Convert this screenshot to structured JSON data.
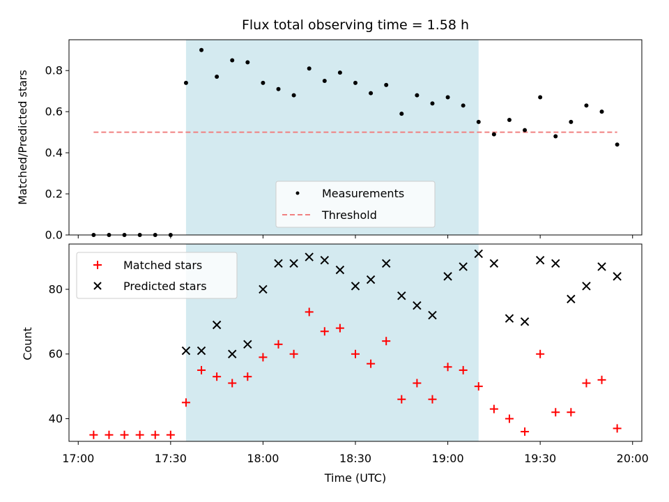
{
  "chart_data": [
    {
      "type": "scatter",
      "title": "Flux total observing time = 1.58 h",
      "ylabel": "Matched/Predicted stars",
      "ylim": [
        0,
        0.95
      ],
      "yticks": [
        "0.0",
        "0.2",
        "0.4",
        "0.6",
        "0.8"
      ],
      "shaded_interval": [
        "17:35",
        "19:10"
      ],
      "shade_color": "#d4eaf0",
      "legend_position": "lower-center",
      "series": [
        {
          "name": "Measurements",
          "marker": "dot",
          "color": "#000000",
          "x": [
            "17:05",
            "17:10",
            "17:15",
            "17:20",
            "17:25",
            "17:30",
            "17:35",
            "17:40",
            "17:45",
            "17:50",
            "17:55",
            "18:00",
            "18:05",
            "18:10",
            "18:15",
            "18:20",
            "18:25",
            "18:30",
            "18:35",
            "18:40",
            "18:45",
            "18:50",
            "18:55",
            "19:00",
            "19:05",
            "19:10",
            "19:15",
            "19:20",
            "19:25",
            "19:30",
            "19:35",
            "19:40",
            "19:45",
            "19:50",
            "19:55"
          ],
          "y": [
            0,
            0,
            0,
            0,
            0,
            0,
            0.74,
            0.9,
            0.77,
            0.85,
            0.84,
            0.74,
            0.71,
            0.68,
            0.81,
            0.75,
            0.79,
            0.74,
            0.69,
            0.73,
            0.59,
            0.68,
            0.64,
            0.67,
            0.63,
            0.55,
            0.49,
            0.56,
            0.51,
            0.67,
            0.48,
            0.55,
            0.63,
            0.6,
            0.44
          ]
        },
        {
          "name": "Threshold",
          "marker": "dashed-line",
          "color": "#f08080",
          "x": [
            "17:05",
            "19:55"
          ],
          "y": [
            0.5,
            0.5
          ]
        }
      ]
    },
    {
      "type": "scatter",
      "ylabel": "Count",
      "xlabel": "Time (UTC)",
      "ylim": [
        33,
        94
      ],
      "yticks": [
        "40",
        "60",
        "80"
      ],
      "xticks": [
        "17:00",
        "17:30",
        "18:00",
        "18:30",
        "19:00",
        "19:30",
        "20:00"
      ],
      "shaded_interval": [
        "17:35",
        "19:10"
      ],
      "shade_color": "#d4eaf0",
      "legend_position": "upper-left",
      "series": [
        {
          "name": "Matched stars",
          "marker": "plus",
          "color": "#ff0000",
          "x": [
            "17:05",
            "17:10",
            "17:15",
            "17:20",
            "17:25",
            "17:30",
            "17:35",
            "17:40",
            "17:45",
            "17:50",
            "17:55",
            "18:00",
            "18:05",
            "18:10",
            "18:15",
            "18:20",
            "18:25",
            "18:30",
            "18:35",
            "18:40",
            "18:45",
            "18:50",
            "18:55",
            "19:00",
            "19:05",
            "19:10",
            "19:15",
            "19:20",
            "19:25",
            "19:30",
            "19:35",
            "19:40",
            "19:45",
            "19:50",
            "19:55"
          ],
          "y": [
            35,
            35,
            35,
            35,
            35,
            35,
            45,
            55,
            53,
            51,
            53,
            59,
            63,
            60,
            73,
            67,
            68,
            60,
            57,
            64,
            46,
            51,
            46,
            56,
            55,
            50,
            43,
            40,
            36,
            60,
            42,
            42,
            51,
            52,
            37
          ]
        },
        {
          "name": "Predicted stars",
          "marker": "x",
          "color": "#000000",
          "x": [
            "17:35",
            "17:40",
            "17:45",
            "17:50",
            "17:55",
            "18:00",
            "18:05",
            "18:10",
            "18:15",
            "18:20",
            "18:25",
            "18:30",
            "18:35",
            "18:40",
            "18:45",
            "18:50",
            "18:55",
            "19:00",
            "19:05",
            "19:10",
            "19:15",
            "19:20",
            "19:25",
            "19:30",
            "19:35",
            "19:40",
            "19:45",
            "19:50",
            "19:55"
          ],
          "y": [
            61,
            61,
            69,
            60,
            63,
            80,
            88,
            88,
            90,
            89,
            86,
            81,
            83,
            88,
            78,
            75,
            72,
            84,
            87,
            91,
            88,
            71,
            70,
            89,
            88,
            77,
            81,
            87,
            84
          ]
        }
      ]
    }
  ]
}
